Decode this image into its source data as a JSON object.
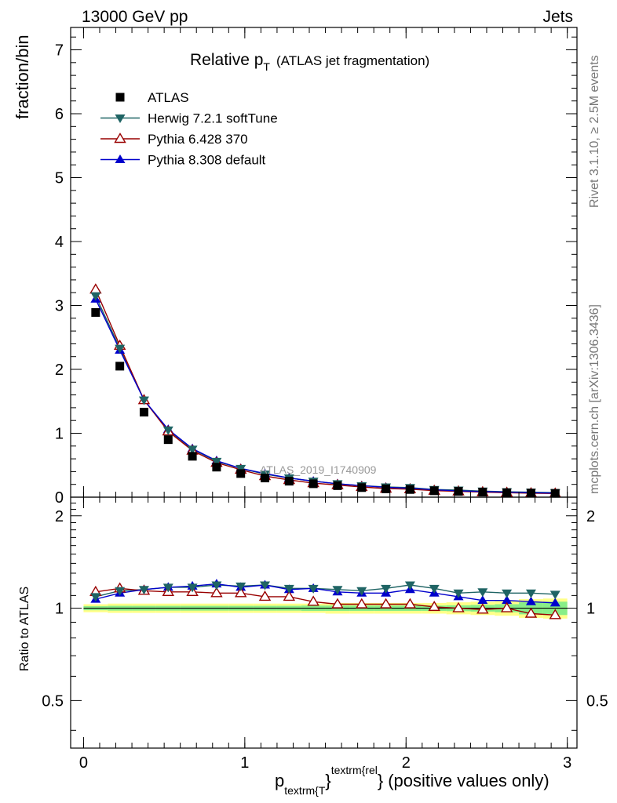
{
  "header": {
    "left": "13000 GeV pp",
    "right": "Jets"
  },
  "side_labels": {
    "rivet": "Rivet 3.1.10, ≥ 2.5M events",
    "mcplots": "mcplots.cern.ch [arXiv:1306.3436]"
  },
  "title": {
    "main": "Relative p",
    "main_sub": "T",
    "paren": "(ATLAS jet fragmentation)"
  },
  "watermark": "ATLAS_2019_I1740909",
  "xlabel": {
    "p": "p",
    "sub": "textrm{T",
    "sup": "textrm{rel",
    "brace_close": "}",
    "brace_sup_close": "}",
    "rest": "(positive values only)"
  },
  "legend": [
    {
      "label": "ATLAS",
      "marker": "square",
      "color": "#000000"
    },
    {
      "label": "Herwig 7.2.1 softTune",
      "marker": "triangle-down",
      "color": "#1f6464"
    },
    {
      "label": "Pythia 6.428 370",
      "marker": "triangle-up-open",
      "color": "#990000"
    },
    {
      "label": "Pythia 8.308 default",
      "marker": "triangle-up",
      "color": "#0000cc"
    }
  ],
  "chart_data": [
    {
      "type": "line",
      "panel": "main",
      "ylabel": "fraction/bin",
      "xlim": [
        -0.08,
        3.06
      ],
      "ylim": [
        0,
        7.35
      ],
      "x_ticks": [
        0,
        1,
        2,
        3
      ],
      "y_ticks": [
        0,
        1,
        2,
        3,
        4,
        5,
        6,
        7
      ],
      "y_tick_labels": [
        "0",
        "1",
        "2",
        "3",
        "4",
        "5",
        "6",
        "7"
      ],
      "x": [
        0.075,
        0.225,
        0.375,
        0.525,
        0.675,
        0.825,
        0.975,
        1.125,
        1.275,
        1.425,
        1.575,
        1.725,
        1.875,
        2.025,
        2.175,
        2.325,
        2.475,
        2.625,
        2.775,
        2.925
      ],
      "series": [
        {
          "name": "ATLAS",
          "values": [
            2.89,
            2.05,
            1.33,
            0.9,
            0.64,
            0.47,
            0.37,
            0.3,
            0.25,
            0.21,
            0.18,
            0.15,
            0.13,
            0.12,
            0.1,
            0.09,
            0.08,
            0.07,
            0.065,
            0.06
          ]
        },
        {
          "name": "Herwig 7.2.1 softTune",
          "values": [
            3.15,
            2.33,
            1.52,
            1.05,
            0.75,
            0.56,
            0.45,
            0.36,
            0.3,
            0.25,
            0.21,
            0.18,
            0.16,
            0.15,
            0.12,
            0.11,
            0.095,
            0.085,
            0.077,
            0.071
          ]
        },
        {
          "name": "Pythia 6.428 370",
          "values": [
            3.25,
            2.37,
            1.52,
            1.03,
            0.73,
            0.54,
            0.43,
            0.33,
            0.27,
            0.22,
            0.19,
            0.16,
            0.135,
            0.125,
            0.102,
            0.092,
            0.079,
            0.07,
            0.063,
            0.058
          ]
        },
        {
          "name": "Pythia 8.308 default",
          "values": [
            3.1,
            2.3,
            1.52,
            1.06,
            0.76,
            0.57,
            0.45,
            0.37,
            0.3,
            0.25,
            0.21,
            0.18,
            0.155,
            0.14,
            0.115,
            0.1,
            0.088,
            0.078,
            0.07,
            0.064
          ]
        }
      ]
    },
    {
      "type": "line",
      "panel": "ratio",
      "ylabel": "Ratio to ATLAS",
      "xlim": [
        -0.08,
        3.06
      ],
      "ylim": [
        0.35,
        2.3
      ],
      "x_ticks": [
        0,
        1,
        2,
        3
      ],
      "x_tick_labels": [
        "0",
        "1",
        "2",
        "3"
      ],
      "y_ticks": [
        0.5,
        1,
        2
      ],
      "y_tick_labels": [
        "0.5",
        "1",
        "2"
      ],
      "reference_line": 1,
      "x": [
        0.075,
        0.225,
        0.375,
        0.525,
        0.675,
        0.825,
        0.975,
        1.125,
        1.275,
        1.425,
        1.575,
        1.725,
        1.875,
        2.025,
        2.175,
        2.325,
        2.475,
        2.625,
        2.775,
        2.925
      ],
      "bands": {
        "bin_edges": [
          0.0,
          0.15,
          0.3,
          0.45,
          0.6,
          0.75,
          0.9,
          1.05,
          1.2,
          1.35,
          1.5,
          1.65,
          1.8,
          1.95,
          2.1,
          2.25,
          2.4,
          2.55,
          2.7,
          2.85,
          3.0
        ],
        "yellow_halfwidth": [
          0.03,
          0.035,
          0.035,
          0.035,
          0.035,
          0.035,
          0.035,
          0.035,
          0.035,
          0.035,
          0.04,
          0.04,
          0.04,
          0.04,
          0.04,
          0.045,
          0.05,
          0.055,
          0.07,
          0.075
        ],
        "green_halfwidth": [
          0.015,
          0.018,
          0.018,
          0.018,
          0.018,
          0.018,
          0.018,
          0.018,
          0.018,
          0.02,
          0.02,
          0.02,
          0.02,
          0.02,
          0.02,
          0.022,
          0.025,
          0.03,
          0.045,
          0.05
        ],
        "yellow_color": "#ffff88",
        "green_color": "#88ee88"
      },
      "series": [
        {
          "name": "Herwig 7.2.1 softTune",
          "values": [
            1.09,
            1.14,
            1.15,
            1.17,
            1.17,
            1.19,
            1.18,
            1.19,
            1.16,
            1.16,
            1.15,
            1.14,
            1.16,
            1.19,
            1.16,
            1.12,
            1.13,
            1.12,
            1.12,
            1.11
          ]
        },
        {
          "name": "Pythia 6.428 370",
          "values": [
            1.13,
            1.16,
            1.14,
            1.13,
            1.13,
            1.12,
            1.12,
            1.09,
            1.09,
            1.05,
            1.03,
            1.03,
            1.03,
            1.03,
            1.01,
            1.0,
            0.99,
            1.0,
            0.96,
            0.95
          ]
        },
        {
          "name": "Pythia 8.308 default",
          "values": [
            1.07,
            1.12,
            1.15,
            1.17,
            1.18,
            1.2,
            1.17,
            1.19,
            1.15,
            1.16,
            1.13,
            1.12,
            1.12,
            1.15,
            1.12,
            1.09,
            1.06,
            1.06,
            1.05,
            1.04
          ]
        }
      ]
    }
  ]
}
